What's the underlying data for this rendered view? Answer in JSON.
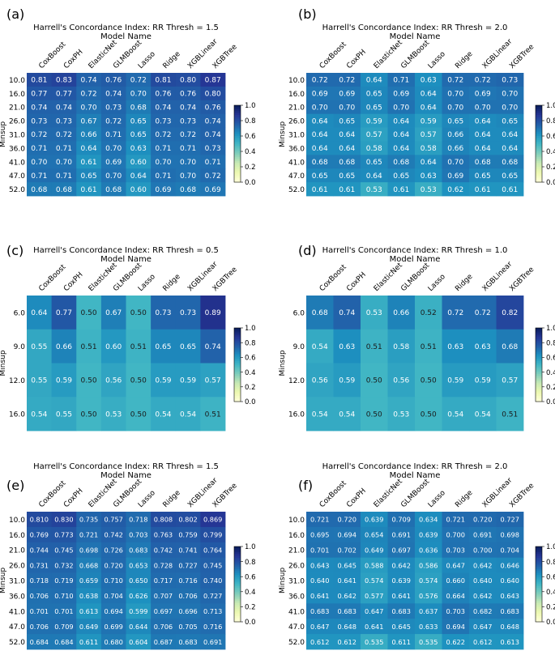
{
  "figure": {
    "colorbar": {
      "ticks": [
        "1.0",
        "0.8",
        "0.6",
        "0.4",
        "0.2",
        "0.0"
      ],
      "min": 0.0,
      "max": 1.0
    }
  },
  "chart_data": [
    {
      "type": "heatmap",
      "panel_label": "(a)",
      "title": "Harrell's Concordance Index: RR Thresh = 1.5",
      "xlabel": "Model Name",
      "ylabel": "Minsup",
      "categories": [
        "CoxBoost",
        "CoxPH",
        "ElasticNet",
        "GLMBoost",
        "Lasso",
        "Ridge",
        "XGBLinear",
        "XGBTree"
      ],
      "rows": [
        "10.0",
        "16.0",
        "21.0",
        "26.0",
        "31.0",
        "36.0",
        "41.0",
        "47.0",
        "52.0"
      ],
      "values": [
        [
          "0.81",
          "0.83",
          "0.74",
          "0.76",
          "0.72",
          "0.81",
          "0.80",
          "0.87"
        ],
        [
          "0.77",
          "0.77",
          "0.72",
          "0.74",
          "0.70",
          "0.76",
          "0.76",
          "0.80"
        ],
        [
          "0.74",
          "0.74",
          "0.70",
          "0.73",
          "0.68",
          "0.74",
          "0.74",
          "0.76"
        ],
        [
          "0.73",
          "0.73",
          "0.67",
          "0.72",
          "0.65",
          "0.73",
          "0.73",
          "0.74"
        ],
        [
          "0.72",
          "0.72",
          "0.66",
          "0.71",
          "0.65",
          "0.72",
          "0.72",
          "0.74"
        ],
        [
          "0.71",
          "0.71",
          "0.64",
          "0.70",
          "0.63",
          "0.71",
          "0.71",
          "0.73"
        ],
        [
          "0.70",
          "0.70",
          "0.61",
          "0.69",
          "0.60",
          "0.70",
          "0.70",
          "0.71"
        ],
        [
          "0.71",
          "0.71",
          "0.65",
          "0.70",
          "0.64",
          "0.71",
          "0.70",
          "0.72"
        ],
        [
          "0.68",
          "0.68",
          "0.61",
          "0.68",
          "0.60",
          "0.69",
          "0.68",
          "0.69"
        ]
      ]
    },
    {
      "type": "heatmap",
      "panel_label": "(b)",
      "title": "Harrell's Concordance Index: RR Thresh = 2.0",
      "xlabel": "Model Name",
      "ylabel": "Minsup",
      "categories": [
        "CoxBoost",
        "CoxPH",
        "ElasticNet",
        "GLMBoost",
        "Lasso",
        "Ridge",
        "XGBLinear",
        "XGBTree"
      ],
      "rows": [
        "10.0",
        "16.0",
        "21.0",
        "26.0",
        "31.0",
        "36.0",
        "41.0",
        "47.0",
        "52.0"
      ],
      "values": [
        [
          "0.72",
          "0.72",
          "0.64",
          "0.71",
          "0.63",
          "0.72",
          "0.72",
          "0.73"
        ],
        [
          "0.69",
          "0.69",
          "0.65",
          "0.69",
          "0.64",
          "0.70",
          "0.69",
          "0.70"
        ],
        [
          "0.70",
          "0.70",
          "0.65",
          "0.70",
          "0.64",
          "0.70",
          "0.70",
          "0.70"
        ],
        [
          "0.64",
          "0.65",
          "0.59",
          "0.64",
          "0.59",
          "0.65",
          "0.64",
          "0.65"
        ],
        [
          "0.64",
          "0.64",
          "0.57",
          "0.64",
          "0.57",
          "0.66",
          "0.64",
          "0.64"
        ],
        [
          "0.64",
          "0.64",
          "0.58",
          "0.64",
          "0.58",
          "0.66",
          "0.64",
          "0.64"
        ],
        [
          "0.68",
          "0.68",
          "0.65",
          "0.68",
          "0.64",
          "0.70",
          "0.68",
          "0.68"
        ],
        [
          "0.65",
          "0.65",
          "0.64",
          "0.65",
          "0.63",
          "0.69",
          "0.65",
          "0.65"
        ],
        [
          "0.61",
          "0.61",
          "0.53",
          "0.61",
          "0.53",
          "0.62",
          "0.61",
          "0.61"
        ]
      ]
    },
    {
      "type": "heatmap",
      "panel_label": "(c)",
      "title": "Harrell's Concordance Index: RR Thresh = 0.5",
      "xlabel": "Model Name",
      "ylabel": "Minsup",
      "categories": [
        "CoxBoost",
        "CoxPH",
        "ElasticNet",
        "GLMBoost",
        "Lasso",
        "Ridge",
        "XGBLinear",
        "XGBTree"
      ],
      "rows": [
        "6.0",
        "9.0",
        "12.0",
        "16.0"
      ],
      "values": [
        [
          "0.64",
          "0.77",
          "0.50",
          "0.67",
          "0.50",
          "0.73",
          "0.73",
          "0.89"
        ],
        [
          "0.55",
          "0.66",
          "0.51",
          "0.60",
          "0.51",
          "0.65",
          "0.65",
          "0.74"
        ],
        [
          "0.55",
          "0.59",
          "0.50",
          "0.56",
          "0.50",
          "0.59",
          "0.59",
          "0.57"
        ],
        [
          "0.54",
          "0.55",
          "0.50",
          "0.53",
          "0.50",
          "0.54",
          "0.54",
          "0.51"
        ]
      ]
    },
    {
      "type": "heatmap",
      "panel_label": "(d)",
      "title": "Harrell's Concordance Index: RR Thresh = 1.0",
      "xlabel": "Model Name",
      "ylabel": "Minsup",
      "categories": [
        "CoxBoost",
        "CoxPH",
        "ElasticNet",
        "GLMBoost",
        "Lasso",
        "Ridge",
        "XGBLinear",
        "XGBTree"
      ],
      "rows": [
        "6.0",
        "9.0",
        "12.0",
        "16.0"
      ],
      "values": [
        [
          "0.68",
          "0.74",
          "0.53",
          "0.66",
          "0.52",
          "0.72",
          "0.72",
          "0.82"
        ],
        [
          "0.54",
          "0.63",
          "0.51",
          "0.58",
          "0.51",
          "0.63",
          "0.63",
          "0.68"
        ],
        [
          "0.56",
          "0.59",
          "0.50",
          "0.56",
          "0.50",
          "0.59",
          "0.59",
          "0.57"
        ],
        [
          "0.54",
          "0.54",
          "0.50",
          "0.53",
          "0.50",
          "0.54",
          "0.54",
          "0.51"
        ]
      ]
    },
    {
      "type": "heatmap",
      "panel_label": "(e)",
      "title": "Harrell's Concordance Index: RR Thresh = 1.5",
      "xlabel": "Model Name",
      "ylabel": "Minsup",
      "categories": [
        "CoxBoost",
        "CoxPH",
        "ElasticNet",
        "GLMBoost",
        "Lasso",
        "Ridge",
        "XGBLinear",
        "XGBTree"
      ],
      "rows": [
        "10.0",
        "16.0",
        "21.0",
        "26.0",
        "31.0",
        "36.0",
        "41.0",
        "47.0",
        "52.0"
      ],
      "values": [
        [
          "0.810",
          "0.830",
          "0.735",
          "0.757",
          "0.718",
          "0.808",
          "0.802",
          "0.869"
        ],
        [
          "0.769",
          "0.773",
          "0.721",
          "0.742",
          "0.703",
          "0.763",
          "0.759",
          "0.799"
        ],
        [
          "0.744",
          "0.745",
          "0.698",
          "0.726",
          "0.683",
          "0.742",
          "0.741",
          "0.764"
        ],
        [
          "0.731",
          "0.732",
          "0.668",
          "0.720",
          "0.653",
          "0.728",
          "0.727",
          "0.745"
        ],
        [
          "0.718",
          "0.719",
          "0.659",
          "0.710",
          "0.650",
          "0.717",
          "0.716",
          "0.740"
        ],
        [
          "0.706",
          "0.710",
          "0.638",
          "0.704",
          "0.626",
          "0.707",
          "0.706",
          "0.727"
        ],
        [
          "0.701",
          "0.701",
          "0.613",
          "0.694",
          "0.599",
          "0.697",
          "0.696",
          "0.713"
        ],
        [
          "0.706",
          "0.709",
          "0.649",
          "0.699",
          "0.644",
          "0.706",
          "0.705",
          "0.716"
        ],
        [
          "0.684",
          "0.684",
          "0.611",
          "0.680",
          "0.604",
          "0.687",
          "0.683",
          "0.691"
        ]
      ]
    },
    {
      "type": "heatmap",
      "panel_label": "(f)",
      "title": "Harrell's Concordance Index: RR Thresh = 2.0",
      "xlabel": "Model Name",
      "ylabel": "Minsup",
      "categories": [
        "CoxBoost",
        "CoxPH",
        "ElasticNet",
        "GLMBoost",
        "Lasso",
        "Ridge",
        "XGBLinear",
        "XGBTree"
      ],
      "rows": [
        "10.0",
        "16.0",
        "21.0",
        "26.0",
        "31.0",
        "36.0",
        "41.0",
        "47.0",
        "52.0"
      ],
      "values": [
        [
          "0.721",
          "0.720",
          "0.639",
          "0.709",
          "0.634",
          "0.721",
          "0.720",
          "0.727"
        ],
        [
          "0.695",
          "0.694",
          "0.654",
          "0.691",
          "0.639",
          "0.700",
          "0.691",
          "0.698"
        ],
        [
          "0.701",
          "0.702",
          "0.649",
          "0.697",
          "0.636",
          "0.703",
          "0.700",
          "0.704"
        ],
        [
          "0.643",
          "0.645",
          "0.588",
          "0.642",
          "0.586",
          "0.647",
          "0.642",
          "0.646"
        ],
        [
          "0.640",
          "0.641",
          "0.574",
          "0.639",
          "0.574",
          "0.660",
          "0.640",
          "0.640"
        ],
        [
          "0.641",
          "0.642",
          "0.577",
          "0.641",
          "0.576",
          "0.664",
          "0.642",
          "0.643"
        ],
        [
          "0.683",
          "0.683",
          "0.647",
          "0.683",
          "0.637",
          "0.703",
          "0.682",
          "0.683"
        ],
        [
          "0.647",
          "0.648",
          "0.641",
          "0.645",
          "0.633",
          "0.694",
          "0.647",
          "0.648"
        ],
        [
          "0.612",
          "0.612",
          "0.535",
          "0.611",
          "0.535",
          "0.622",
          "0.612",
          "0.613"
        ]
      ]
    }
  ]
}
